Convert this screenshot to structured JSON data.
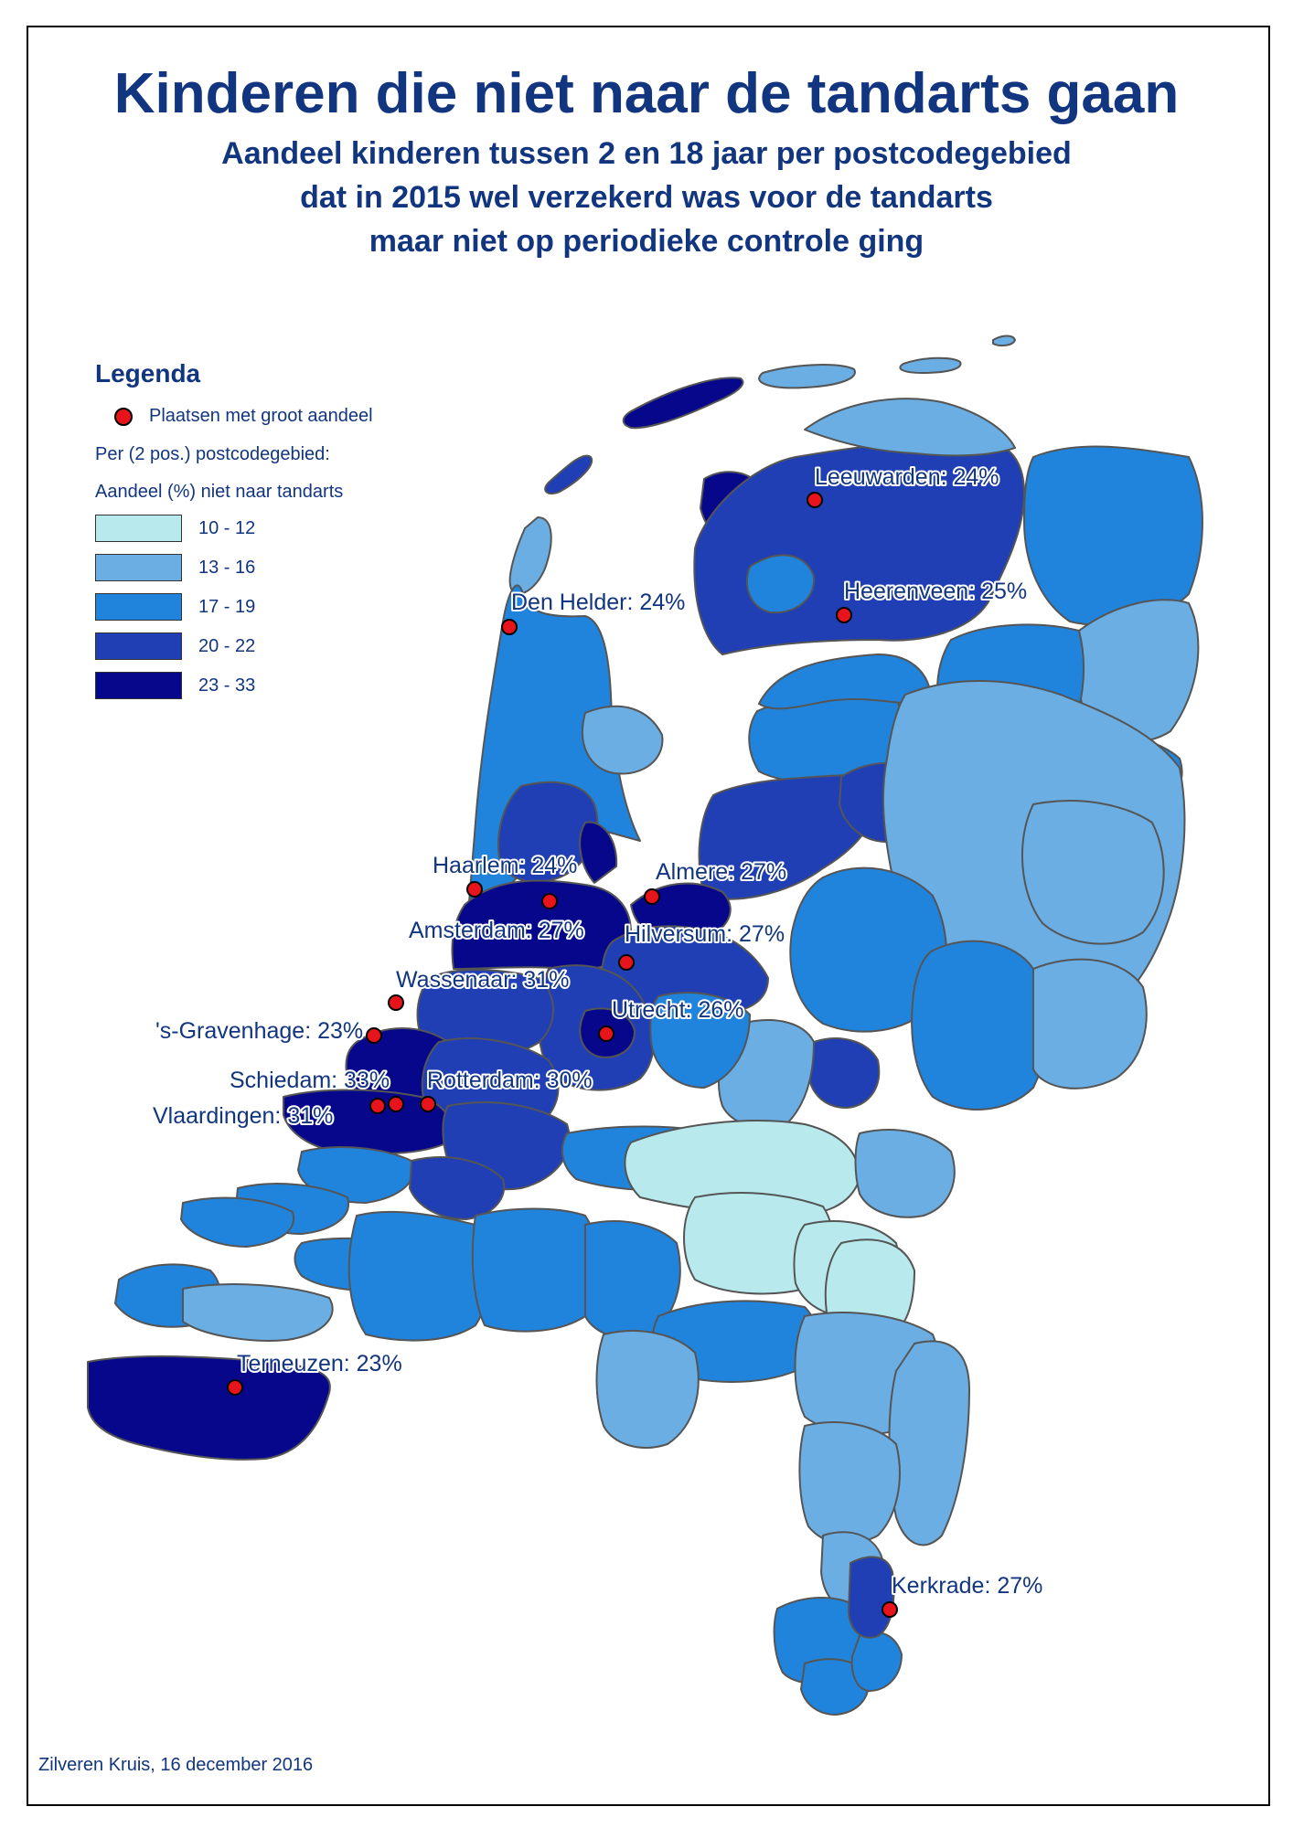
{
  "title": "Kinderen die niet naar de tandarts gaan",
  "subtitle": [
    "Aandeel kinderen tussen 2 en 18 jaar per postcodegebied",
    "dat in 2015 wel verzekerd was voor de tandarts",
    "maar niet op periodieke controle ging"
  ],
  "legend": {
    "heading": "Legenda",
    "marker_label": "Plaatsen met groot aandeel",
    "scale_caption_1": "Per (2 pos.) postcodegebied:",
    "scale_caption_2": "Aandeel (%) niet naar tandarts",
    "classes": [
      {
        "label": "10 - 12",
        "color": "#b8eaed"
      },
      {
        "label": "13 - 16",
        "color": "#6baee3"
      },
      {
        "label": "17 - 19",
        "color": "#2184dc"
      },
      {
        "label": "20 - 22",
        "color": "#213fb4"
      },
      {
        "label": "23 - 33",
        "color": "#07078c"
      }
    ]
  },
  "cities": [
    {
      "name": "Leeuwarden: 24%"
    },
    {
      "name": "Heerenveen: 25%"
    },
    {
      "name": "Den Helder: 24%"
    },
    {
      "name": "Haarlem: 24%"
    },
    {
      "name": "Amsterdam: 27%"
    },
    {
      "name": "Almere: 27%"
    },
    {
      "name": "Hilversum: 27%"
    },
    {
      "name": "Wassenaar: 31%"
    },
    {
      "name": "Utrecht: 26%"
    },
    {
      "name": "'s-Gravenhage: 23%"
    },
    {
      "name": "Schiedam: 33%"
    },
    {
      "name": "Rotterdam: 30%"
    },
    {
      "name": "Vlaardingen: 31%"
    },
    {
      "name": "Terneuzen: 23%"
    },
    {
      "name": "Kerkrade: 27%"
    }
  ],
  "credit": "Zilveren Kruis, 16 december 2016"
}
